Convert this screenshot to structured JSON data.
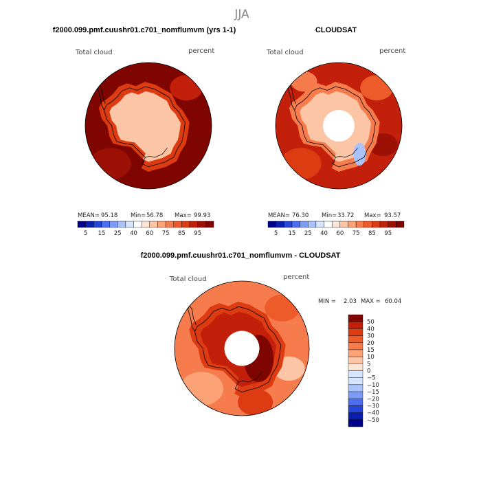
{
  "season": "JJA",
  "colors": {
    "blues": [
      "#00008b",
      "#0a1fb0",
      "#2745d8",
      "#4b6ff0",
      "#7d9cf5",
      "#aac3fa",
      "#d6e4fd"
    ],
    "neutral": "#ffffff",
    "reds": [
      "#fde6d8",
      "#fcc6a6",
      "#fba276",
      "#f77c4d",
      "#ee5b2a",
      "#dd3c13",
      "#c2200a",
      "#9d1005",
      "#7e0500"
    ],
    "land_outline": "#000000",
    "missing": "#ffffff"
  },
  "panels": [
    {
      "title": "f2000.099.pmf.cuushr01.c701_nomflumvm (yrs 1-1)",
      "variable": "Total cloud",
      "units": "percent",
      "stats": {
        "mean_label": "MEAN=",
        "mean": "95.18",
        "min_label": "Min=",
        "min": "56.78",
        "max_label": "Max=",
        "max": "99.93"
      },
      "ocean_level": 95,
      "coast_level": 80,
      "interior_level": 62,
      "pole_hole": false,
      "colorbar_levels": [
        5,
        10,
        15,
        20,
        25,
        30,
        40,
        50,
        60,
        65,
        70,
        75,
        80,
        85,
        90,
        95
      ],
      "colorbar_ticks": [
        "5",
        "15",
        "25",
        "40",
        "60",
        "75",
        "85",
        "95"
      ]
    },
    {
      "title": "CLOUDSAT",
      "variable": "Total cloud",
      "units": "percent",
      "stats": {
        "mean_label": "MEAN=",
        "mean": "76.30",
        "min_label": "Min=",
        "min": "33.72",
        "max_label": "Max=",
        "max": "93.57"
      },
      "ocean_level": 85,
      "coast_level": 70,
      "interior_level": 60,
      "pole_hole": true,
      "colorbar_levels": [
        5,
        10,
        15,
        20,
        25,
        30,
        40,
        50,
        60,
        65,
        70,
        75,
        80,
        85,
        90,
        95
      ],
      "colorbar_ticks": [
        "5",
        "15",
        "25",
        "40",
        "60",
        "75",
        "85",
        "95"
      ]
    },
    {
      "title": "f2000.099.pmf.cuushr01.c701_nomflumvm - CLOUDSAT",
      "variable": "Total cloud",
      "units": "percent",
      "stats": {
        "min_label": "MIN =",
        "min": "2.03",
        "max_label": "MAX =",
        "max": "60.04"
      },
      "ocean_level": 15,
      "coast_level": 30,
      "interior_level": 40,
      "pole_hole": true,
      "colorbar_ticks": [
        "50",
        "40",
        "30",
        "20",
        "15",
        "10",
        "5",
        "0",
        "−5",
        "−10",
        "−15",
        "−20",
        "−30",
        "−40",
        "−50"
      ]
    }
  ],
  "chart_data": [
    {
      "type": "heatmap",
      "title": "f2000.099.pmf.cuushr01.c701_nomflumvm (yrs 1-1)",
      "variable": "Total cloud",
      "units": "percent",
      "projection": "south polar stereographic",
      "mean": 95.18,
      "min": 56.78,
      "max": 99.93,
      "colorbar_levels": [
        5,
        10,
        15,
        20,
        25,
        30,
        40,
        50,
        60,
        65,
        70,
        75,
        80,
        85,
        90,
        95
      ]
    },
    {
      "type": "heatmap",
      "title": "CLOUDSAT",
      "variable": "Total cloud",
      "units": "percent",
      "projection": "south polar stereographic",
      "mean": 76.3,
      "min": 33.72,
      "max": 93.57,
      "colorbar_levels": [
        5,
        10,
        15,
        20,
        25,
        30,
        40,
        50,
        60,
        65,
        70,
        75,
        80,
        85,
        90,
        95
      ]
    },
    {
      "type": "heatmap",
      "title": "f2000.099.pmf.cuushr01.c701_nomflumvm - CLOUDSAT",
      "variable": "Total cloud",
      "units": "percent",
      "projection": "south polar stereographic",
      "min": 2.03,
      "max": 60.04,
      "colorbar_levels": [
        -50,
        -40,
        -30,
        -20,
        -15,
        -10,
        -5,
        0,
        5,
        10,
        15,
        20,
        30,
        40,
        50
      ]
    }
  ]
}
